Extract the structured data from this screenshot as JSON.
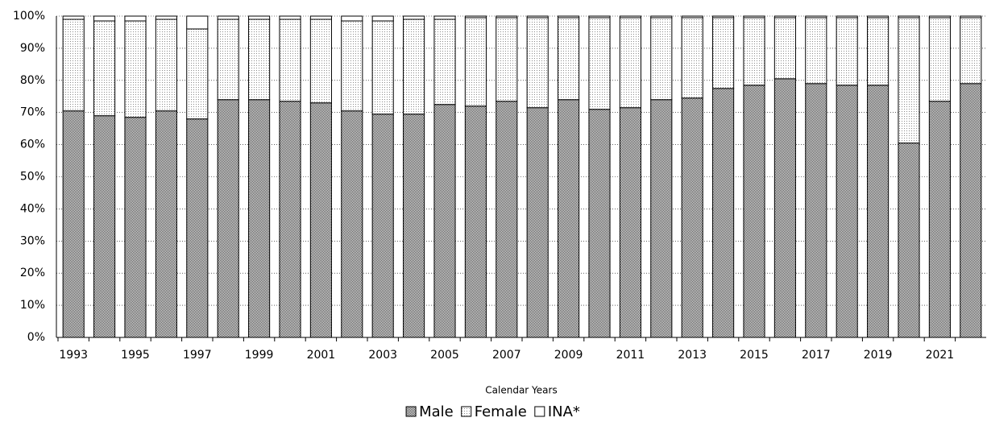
{
  "chart_data": {
    "type": "stacked_bar",
    "x_label": "Calendar Years",
    "categories": [
      "1993",
      null,
      "1995",
      null,
      "1997",
      null,
      "1999",
      null,
      "2001",
      null,
      "2003",
      null,
      "2005",
      null,
      "2007",
      null,
      "2009",
      null,
      "2011",
      null,
      "2013",
      null,
      "2015",
      null,
      "2017",
      null,
      "2019",
      null,
      "2021",
      null
    ],
    "series": [
      {
        "name": "Male",
        "color": "#3a3a3a",
        "values": [
          70.5,
          69,
          68.5,
          70.5,
          68,
          74,
          74,
          73.5,
          73,
          70.5,
          69.5,
          69.5,
          72.5,
          72,
          73.5,
          71.5,
          74,
          71,
          71.5,
          74,
          74.5,
          77.5,
          78.5,
          80.5,
          79,
          78.5,
          78.5,
          60.5,
          73.5,
          79
        ]
      },
      {
        "name": "Female",
        "color": "#8a8a8a",
        "values": [
          28.5,
          29.5,
          30,
          28.5,
          28,
          25,
          25,
          25.5,
          26,
          28,
          29,
          29.5,
          26.5,
          27.5,
          26,
          28,
          25.5,
          28.5,
          28,
          25.5,
          25,
          22,
          21,
          19,
          20.5,
          21,
          21,
          39,
          26,
          20.5
        ]
      },
      {
        "name": "INA*",
        "color": "#ffffff",
        "values": [
          1,
          1.5,
          1.5,
          1,
          4,
          1,
          1,
          1,
          1,
          1.5,
          1.5,
          1,
          1,
          0.5,
          0.5,
          0.5,
          0.5,
          0.5,
          0.5,
          0.5,
          0.5,
          0.5,
          0.5,
          0.5,
          0.5,
          0.5,
          0.5,
          0.5,
          0.5,
          0.5
        ]
      }
    ],
    "ylim": [
      0,
      100
    ],
    "yticks": [
      {
        "value": 0,
        "label": "0%"
      },
      {
        "value": 10,
        "label": "10%"
      },
      {
        "value": 20,
        "label": "20%"
      },
      {
        "value": 30,
        "label": "30%"
      },
      {
        "value": 40,
        "label": "40%"
      },
      {
        "value": 50,
        "label": "50%"
      },
      {
        "value": 60,
        "label": "60%"
      },
      {
        "value": 70,
        "label": "70%"
      },
      {
        "value": 80,
        "label": "80%"
      },
      {
        "value": 90,
        "label": "90%"
      },
      {
        "value": 100,
        "label": "100%"
      }
    ],
    "grid": true,
    "legend": "bottom"
  }
}
